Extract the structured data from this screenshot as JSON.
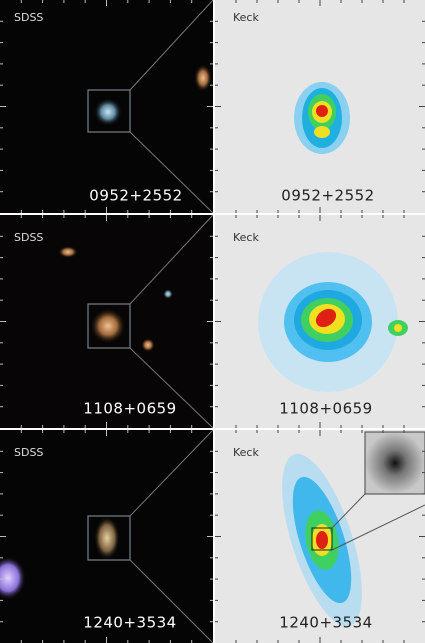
{
  "rows": [
    {
      "left_label": "SDSS",
      "right_label": "Keck",
      "name": "0952+2552"
    },
    {
      "left_label": "SDSS",
      "right_label": "Keck",
      "name": "1108+0659"
    },
    {
      "left_label": "SDSS",
      "right_label": "Keck",
      "name": "1240+3534"
    }
  ]
}
